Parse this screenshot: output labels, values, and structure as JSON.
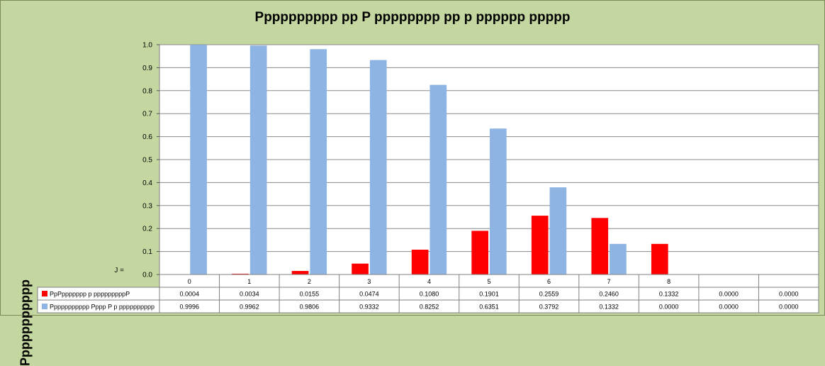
{
  "chart_data": {
    "type": "bar",
    "title": "Pppppppppp pp P pppppppp pp p pppppp ppppp",
    "ylabel": "Ppppppppppp",
    "x_prefix": "J =",
    "ylim": [
      0,
      1.0
    ],
    "yticks": [
      "0.0",
      "0.1",
      "0.2",
      "0.3",
      "0.4",
      "0.5",
      "0.6",
      "0.7",
      "0.8",
      "0.9",
      "1.0"
    ],
    "categories": [
      "0",
      "1",
      "2",
      "3",
      "4",
      "5",
      "6",
      "7",
      "8",
      "",
      ""
    ],
    "series": [
      {
        "name": "PpPppppppp p pppppppppP",
        "color": "#ff0000",
        "values": [
          0.0004,
          0.0034,
          0.0155,
          0.0474,
          0.108,
          0.1901,
          0.2559,
          0.246,
          0.1332,
          0.0,
          0.0
        ],
        "labels": [
          "0.0004",
          "0.0034",
          "0.0155",
          "0.0474",
          "0.1080",
          "0.1901",
          "0.2559",
          "0.2460",
          "0.1332",
          "0.0000",
          "0.0000"
        ]
      },
      {
        "name": "Ppppppppppp Pppp P p pppppppppp",
        "color": "#8db4e2",
        "values": [
          0.9996,
          0.9962,
          0.9806,
          0.9332,
          0.8252,
          0.6351,
          0.3792,
          0.1332,
          0.0,
          0.0,
          0.0
        ],
        "labels": [
          "0.9996",
          "0.9962",
          "0.9806",
          "0.9332",
          "0.8252",
          "0.6351",
          "0.3792",
          "0.1332",
          "0.0000",
          "0.0000",
          "0.0000"
        ]
      }
    ],
    "grid": true,
    "legend": "data-table"
  }
}
